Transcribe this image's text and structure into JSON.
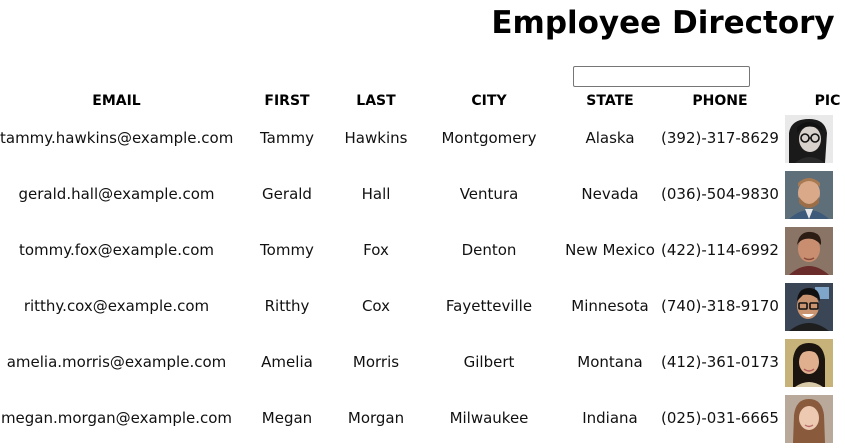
{
  "title": "Employee Directory",
  "search": {
    "value": "",
    "placeholder": ""
  },
  "columns": [
    "EMAIL",
    "FIRST",
    "LAST",
    "CITY",
    "STATE",
    "PHONE",
    "PIC"
  ],
  "employees": [
    {
      "email": "tammy.hawkins@example.com",
      "first": "Tammy",
      "last": "Hawkins",
      "city": "Montgomery",
      "state": "Alaska",
      "phone": "(392)-317-8629",
      "pic": "portrait-woman-glasses"
    },
    {
      "email": "gerald.hall@example.com",
      "first": "Gerald",
      "last": "Hall",
      "city": "Ventura",
      "state": "Nevada",
      "phone": "(036)-504-9830",
      "pic": "portrait-man-beard"
    },
    {
      "email": "tommy.fox@example.com",
      "first": "Tommy",
      "last": "Fox",
      "city": "Denton",
      "state": "New Mexico",
      "phone": "(422)-114-6992",
      "pic": "portrait-man-dark-hair"
    },
    {
      "email": "ritthy.cox@example.com",
      "first": "Ritthy",
      "last": "Cox",
      "city": "Fayetteville",
      "state": "Minnesota",
      "phone": "(740)-318-9170",
      "pic": "portrait-man-glasses"
    },
    {
      "email": "amelia.morris@example.com",
      "first": "Amelia",
      "last": "Morris",
      "city": "Gilbert",
      "state": "Montana",
      "phone": "(412)-361-0173",
      "pic": "portrait-woman-dark-hair"
    },
    {
      "email": "megan.morgan@example.com",
      "first": "Megan",
      "last": "Morgan",
      "city": "Milwaukee",
      "state": "Indiana",
      "phone": "(025)-031-6665",
      "pic": "portrait-woman-light-hair"
    }
  ],
  "colors": {
    "text": "#000000",
    "background": "#ffffff"
  }
}
